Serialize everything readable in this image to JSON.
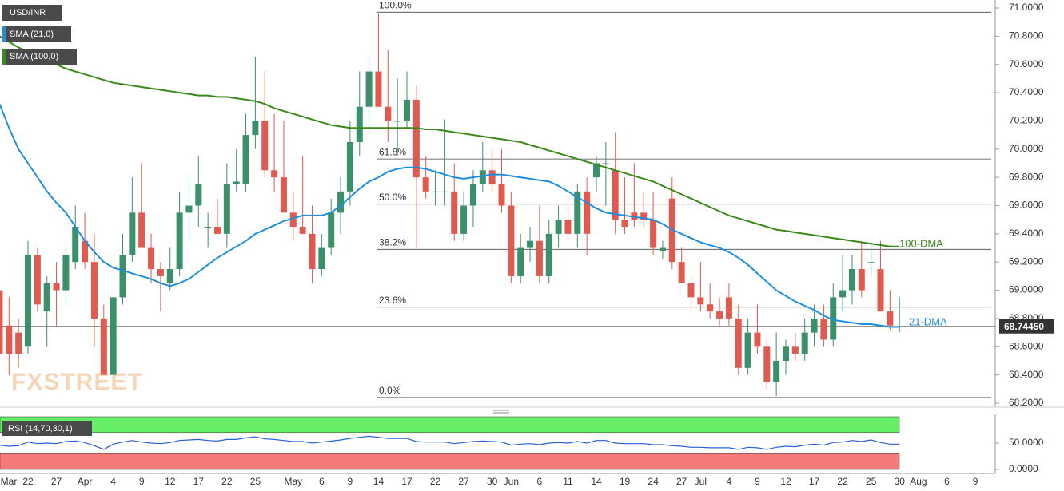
{
  "chart_data": {
    "type": "candlestick",
    "title": "USD/INR",
    "watermark": "FXSTREET",
    "categories": [
      "Mar",
      null,
      null,
      "22",
      null,
      null,
      "27",
      null,
      null,
      "Apr",
      null,
      null,
      "4",
      null,
      null,
      "9",
      null,
      null,
      "12",
      null,
      null,
      "17",
      null,
      null,
      "22",
      null,
      null,
      "25",
      null,
      null,
      null,
      "May",
      null,
      null,
      "6",
      null,
      null,
      "9",
      null,
      null,
      "14",
      null,
      null,
      "17",
      null,
      null,
      "22",
      null,
      null,
      "27",
      null,
      null,
      "30",
      null,
      "Jun",
      null,
      null,
      "6",
      null,
      null,
      "11",
      null,
      null,
      "14",
      null,
      null,
      "19",
      null,
      null,
      "24",
      null,
      null,
      "27",
      null,
      "Jul",
      null,
      null,
      "4",
      null,
      null,
      "9",
      null,
      null,
      "12",
      null,
      null,
      "17",
      null,
      null,
      "22",
      null,
      null,
      "25",
      null,
      null,
      "30",
      null,
      "Aug",
      null,
      null,
      "6",
      null,
      null,
      "9"
    ],
    "candles": {
      "up_color": "#3b8f6b",
      "down_color": "#e05a50",
      "open": [
        69.0,
        68.75,
        68.7,
        68.6,
        69.25,
        68.85,
        69.05,
        69.0,
        69.2,
        69.35,
        69.2,
        68.8,
        68.4,
        68.95,
        69.25,
        69.55,
        69.3,
        69.15,
        69.05,
        69.15,
        69.55,
        69.6,
        69.45,
        69.45,
        69.4,
        69.75,
        69.75,
        70.1,
        70.2,
        69.85,
        69.8,
        69.55,
        69.45,
        69.4,
        69.15,
        69.3,
        69.55,
        69.7,
        70.05,
        70.3,
        70.55,
        70.3,
        70.2,
        70.2,
        70.35,
        69.8,
        69.7,
        69.7,
        69.7,
        69.4,
        69.6,
        69.75,
        69.85,
        69.75,
        69.6,
        69.1,
        69.3,
        69.35,
        69.1,
        69.4,
        69.5,
        69.4,
        69.7,
        69.8,
        69.9,
        69.85,
        69.5,
        69.55,
        69.55,
        69.5,
        69.28,
        69.65,
        69.2,
        69.05,
        68.95,
        68.9,
        68.85,
        68.95,
        68.8,
        68.45,
        68.7,
        68.6,
        68.35,
        68.5,
        68.6,
        68.55,
        68.7,
        68.8,
        68.65,
        68.95,
        69.0,
        69.15,
        69.2,
        69.15,
        68.85,
        68.74,
        null,
        null,
        null,
        null,
        null,
        null,
        null,
        null
      ],
      "high": [
        69.1,
        68.95,
        68.8,
        69.35,
        69.3,
        69.1,
        69.2,
        69.3,
        69.6,
        69.55,
        69.4,
        68.9,
        68.95,
        69.4,
        69.8,
        69.9,
        69.4,
        69.2,
        69.3,
        69.7,
        69.8,
        69.95,
        69.55,
        69.65,
        69.9,
        70.0,
        70.25,
        70.65,
        70.55,
        70.25,
        70.2,
        69.7,
        69.95,
        69.6,
        69.4,
        69.65,
        69.8,
        70.2,
        70.55,
        70.65,
        70.96,
        70.7,
        70.5,
        70.55,
        70.45,
        69.95,
        69.85,
        70.21,
        69.9,
        69.7,
        69.85,
        70.05,
        70.0,
        70.0,
        69.7,
        69.4,
        69.45,
        69.6,
        69.5,
        69.6,
        69.6,
        69.75,
        69.8,
        69.95,
        70.05,
        70.12,
        69.8,
        69.9,
        69.7,
        69.7,
        69.35,
        69.8,
        69.3,
        69.1,
        69.2,
        69.05,
        68.95,
        69.05,
        68.9,
        68.8,
        68.9,
        68.65,
        68.7,
        68.65,
        68.7,
        68.8,
        68.9,
        68.9,
        69.05,
        69.25,
        69.25,
        69.35,
        69.35,
        69.35,
        69.0,
        68.95,
        null,
        null,
        null,
        null,
        null,
        null,
        null,
        null
      ],
      "low": [
        68.45,
        68.4,
        68.45,
        68.55,
        68.85,
        68.6,
        68.75,
        68.9,
        69.15,
        69.15,
        68.6,
        68.4,
        68.4,
        68.9,
        69.2,
        69.3,
        69.05,
        68.85,
        69.0,
        69.1,
        69.35,
        69.45,
        69.3,
        69.4,
        69.3,
        69.7,
        69.7,
        70.0,
        69.8,
        69.7,
        69.55,
        69.35,
        69.4,
        69.05,
        69.1,
        69.25,
        69.4,
        69.6,
        69.95,
        70.1,
        70.3,
        70.05,
        69.95,
        70.15,
        69.3,
        69.65,
        69.6,
        69.6,
        69.35,
        69.35,
        69.45,
        69.7,
        69.7,
        69.55,
        69.05,
        69.05,
        69.2,
        69.05,
        69.05,
        69.3,
        69.35,
        69.3,
        69.25,
        69.7,
        69.6,
        69.4,
        69.4,
        69.45,
        69.45,
        69.25,
        69.22,
        69.15,
        69.05,
        68.85,
        68.85,
        68.8,
        68.75,
        68.75,
        68.4,
        68.4,
        68.55,
        68.3,
        68.25,
        68.4,
        68.5,
        68.5,
        68.6,
        68.6,
        68.6,
        68.85,
        68.9,
        68.95,
        69.1,
        68.85,
        68.72,
        68.7,
        null,
        null,
        null,
        null,
        null,
        null,
        null,
        null
      ],
      "close": [
        68.55,
        68.55,
        68.55,
        69.25,
        68.9,
        69.05,
        69.0,
        69.25,
        69.45,
        69.2,
        68.8,
        68.4,
        68.95,
        69.25,
        69.55,
        69.3,
        69.15,
        69.1,
        69.15,
        69.55,
        69.6,
        69.75,
        69.45,
        69.4,
        69.75,
        69.77,
        70.1,
        70.2,
        69.85,
        69.8,
        69.55,
        69.45,
        69.4,
        69.15,
        69.3,
        69.55,
        69.7,
        70.05,
        70.3,
        70.55,
        70.3,
        70.2,
        70.2,
        70.35,
        69.8,
        69.7,
        69.7,
        69.7,
        69.4,
        69.6,
        69.75,
        69.85,
        69.75,
        69.6,
        69.1,
        69.3,
        69.35,
        69.1,
        69.4,
        69.5,
        69.4,
        69.7,
        69.4,
        69.9,
        69.9,
        69.5,
        69.45,
        69.5,
        69.5,
        69.3,
        69.3,
        69.2,
        69.05,
        68.95,
        68.9,
        68.85,
        68.8,
        68.8,
        68.45,
        68.7,
        68.6,
        68.35,
        68.5,
        68.6,
        68.55,
        68.7,
        68.8,
        68.65,
        68.95,
        69.0,
        69.15,
        69.0,
        69.2,
        68.85,
        68.75,
        68.7445,
        null,
        null,
        null,
        null,
        null,
        null,
        null,
        null
      ]
    },
    "series": [
      {
        "name": "SMA (21,0)",
        "color": "#1e8fe0",
        "values": [
          70.32,
          70.15,
          70.0,
          69.9,
          69.8,
          69.7,
          69.62,
          69.55,
          69.45,
          69.35,
          69.27,
          69.2,
          69.16,
          69.14,
          69.12,
          69.1,
          69.08,
          69.05,
          69.03,
          69.05,
          69.08,
          69.13,
          69.18,
          69.23,
          69.27,
          69.31,
          69.35,
          69.4,
          69.43,
          69.46,
          69.49,
          69.51,
          69.53,
          69.53,
          69.53,
          69.55,
          69.6,
          69.66,
          69.72,
          69.77,
          69.8,
          69.84,
          69.86,
          69.87,
          69.87,
          69.86,
          69.84,
          69.82,
          69.8,
          69.79,
          69.8,
          69.81,
          69.82,
          69.82,
          69.81,
          69.8,
          69.79,
          69.78,
          69.77,
          69.74,
          69.7,
          69.66,
          69.62,
          69.58,
          69.55,
          69.54,
          69.53,
          69.52,
          69.51,
          69.5,
          69.47,
          69.43,
          69.4,
          69.37,
          69.34,
          69.32,
          69.3,
          69.27,
          69.23,
          69.18,
          69.12,
          69.06,
          69.0,
          68.96,
          68.92,
          68.89,
          68.86,
          68.82,
          68.79,
          68.78,
          68.77,
          68.76,
          68.76,
          68.75,
          68.74,
          68.74,
          null,
          null,
          null,
          null,
          null,
          null,
          null,
          null
        ]
      },
      {
        "name": "SMA (100,0)",
        "color": "#3a8a1a",
        "values": [
          70.8,
          70.76,
          70.72,
          70.69,
          70.66,
          70.63,
          70.6,
          70.57,
          70.55,
          70.53,
          70.51,
          70.49,
          70.47,
          70.46,
          70.45,
          70.44,
          70.43,
          70.42,
          70.41,
          70.4,
          70.39,
          70.38,
          70.38,
          70.37,
          70.37,
          70.36,
          70.35,
          70.34,
          70.32,
          70.29,
          70.27,
          70.25,
          70.23,
          70.21,
          70.19,
          70.17,
          70.16,
          70.15,
          70.15,
          70.15,
          70.15,
          70.15,
          70.15,
          70.15,
          70.15,
          70.14,
          70.14,
          70.13,
          70.12,
          70.11,
          70.1,
          70.09,
          70.08,
          70.07,
          70.06,
          70.05,
          70.03,
          70.01,
          69.99,
          69.97,
          69.95,
          69.93,
          69.91,
          69.89,
          69.87,
          69.85,
          69.83,
          69.81,
          69.79,
          69.77,
          69.74,
          69.71,
          69.68,
          69.65,
          69.62,
          69.59,
          69.56,
          69.53,
          69.51,
          69.49,
          69.47,
          69.45,
          69.43,
          69.42,
          69.41,
          69.4,
          69.39,
          69.38,
          69.37,
          69.36,
          69.35,
          69.34,
          69.33,
          69.32,
          69.31,
          69.31,
          null,
          null,
          null,
          null,
          null,
          null,
          null,
          null
        ]
      }
    ],
    "annotations": [
      {
        "text": "100-DMA",
        "color": "#3a8a1a"
      },
      {
        "text": "21-DMA",
        "color": "#1e8fe0"
      }
    ],
    "fibonacci": [
      {
        "label": "100.0%",
        "value": 70.97
      },
      {
        "label": "61.8%",
        "value": 69.93
      },
      {
        "label": "50.0%",
        "value": 69.61
      },
      {
        "label": "38.2%",
        "value": 69.29
      },
      {
        "label": "23.6%",
        "value": 68.88
      },
      {
        "label": "0.0%",
        "value": 68.24
      }
    ],
    "last_price": {
      "value": 68.7445,
      "label": "68.74450"
    },
    "ylim": [
      68.2,
      71.0
    ],
    "yticks": [
      {
        "value": 68.2,
        "label": "68.2000"
      },
      {
        "value": 68.4,
        "label": "68.4000"
      },
      {
        "value": 68.6,
        "label": "68.6000"
      },
      {
        "value": 68.8,
        "label": "68.8000"
      },
      {
        "value": 69.0,
        "label": "69.0000"
      },
      {
        "value": 69.2,
        "label": "69.2000"
      },
      {
        "value": 69.4,
        "label": "69.4000"
      },
      {
        "value": 69.6,
        "label": "69.6000"
      },
      {
        "value": 69.8,
        "label": "69.8000"
      },
      {
        "value": 70.0,
        "label": "70.0000"
      },
      {
        "value": 70.2,
        "label": "70.2000"
      },
      {
        "value": 70.4,
        "label": "70.4000"
      },
      {
        "value": 70.6,
        "label": "70.6000"
      },
      {
        "value": 70.8,
        "label": "70.8000"
      },
      {
        "value": 71.0,
        "label": "71.0000"
      }
    ],
    "rsi": {
      "name": "RSI (14,70,30,1)",
      "color": "#2a5fd8",
      "upper": 70,
      "lower": 30,
      "upper_color": "#66ee66",
      "lower_color": "#f57a7a",
      "ylim": [
        0,
        100
      ],
      "yticks": [
        {
          "value": 0,
          "label": "0.0000"
        },
        {
          "value": 50,
          "label": "50.0000"
        }
      ],
      "values": [
        46,
        44,
        45,
        52,
        49,
        50,
        49,
        53,
        54,
        51,
        45,
        38,
        48,
        52,
        55,
        52,
        50,
        49,
        51,
        55,
        56,
        57,
        55,
        54,
        57,
        57,
        60,
        62,
        58,
        57,
        55,
        53,
        53,
        50,
        52,
        54,
        56,
        59,
        61,
        63,
        61,
        59,
        59,
        59,
        53,
        52,
        52,
        52,
        49,
        51,
        53,
        54,
        53,
        52,
        46,
        48,
        49,
        47,
        50,
        51,
        50,
        53,
        50,
        55,
        55,
        50,
        49,
        49,
        49,
        47,
        47,
        45,
        44,
        42,
        42,
        41,
        41,
        41,
        38,
        42,
        41,
        38,
        42,
        44,
        43,
        46,
        48,
        46,
        51,
        52,
        55,
        53,
        56,
        51,
        48,
        48,
        null,
        null,
        null,
        null,
        null,
        null,
        null,
        null
      ]
    }
  }
}
